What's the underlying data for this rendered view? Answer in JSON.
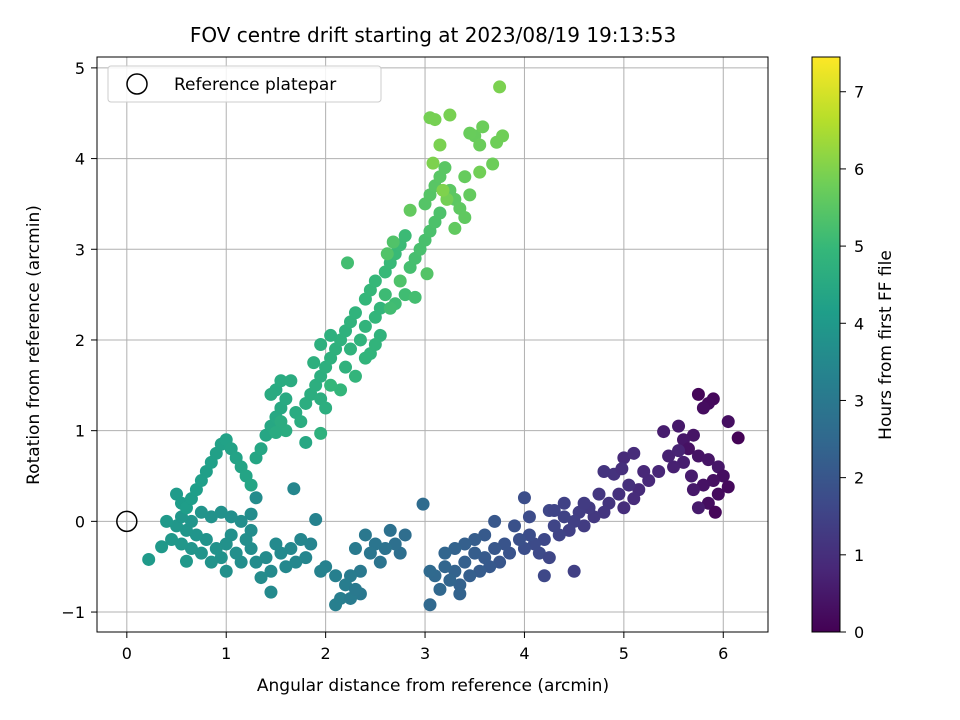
{
  "chart_data": {
    "type": "scatter",
    "title": "FOV centre drift starting at 2023/08/19 19:13:53",
    "xlabel": "Angular distance from reference (arcmin)",
    "ylabel": "Rotation from reference (arcmin)",
    "xlim": [
      -0.3,
      6.45
    ],
    "ylim": [
      -1.22,
      5.12
    ],
    "xticks": [
      "0",
      "1",
      "2",
      "3",
      "4",
      "5",
      "6"
    ],
    "yticks": [
      "−1",
      "0",
      "1",
      "2",
      "3",
      "4",
      "5"
    ],
    "grid": true,
    "legend": {
      "placement": "top-left",
      "entries": [
        "Reference platepar"
      ]
    },
    "reference_point": {
      "x": 0,
      "y": 0,
      "label": "Reference platepar"
    },
    "colorbar": {
      "label": "Hours from first FF file",
      "range": [
        0,
        7.45
      ],
      "ticks": [
        "0",
        "1",
        "2",
        "3",
        "4",
        "5",
        "6",
        "7"
      ],
      "colormap": "viridis"
    },
    "colormap_stops": [
      "#440154",
      "#482878",
      "#3e4989",
      "#31688e",
      "#26828e",
      "#1f9e89",
      "#35b779",
      "#6ece58",
      "#b5de2b",
      "#fde725"
    ],
    "points": [
      [
        5.75,
        1.4,
        0.1
      ],
      [
        5.9,
        1.35,
        0.15
      ],
      [
        5.85,
        1.3,
        0.2
      ],
      [
        5.8,
        1.25,
        0.25
      ],
      [
        6.15,
        0.92,
        0.05
      ],
      [
        6.05,
        1.1,
        0.3
      ],
      [
        5.7,
        0.95,
        0.4
      ],
      [
        5.6,
        0.9,
        0.45
      ],
      [
        5.55,
        1.05,
        0.5
      ],
      [
        5.4,
        0.99,
        0.6
      ],
      [
        5.65,
        0.8,
        0.35
      ],
      [
        5.75,
        0.72,
        0.38
      ],
      [
        5.85,
        0.68,
        0.42
      ],
      [
        5.95,
        0.6,
        0.46
      ],
      [
        6.0,
        0.5,
        0.28
      ],
      [
        5.9,
        0.45,
        0.33
      ],
      [
        5.8,
        0.4,
        0.36
      ],
      [
        5.7,
        0.35,
        0.48
      ],
      [
        5.95,
        0.3,
        0.22
      ],
      [
        6.05,
        0.38,
        0.18
      ],
      [
        5.85,
        0.2,
        0.26
      ],
      [
        5.75,
        0.15,
        0.55
      ],
      [
        5.92,
        0.1,
        0.12
      ],
      [
        5.68,
        0.5,
        0.58
      ],
      [
        5.6,
        0.65,
        0.62
      ],
      [
        5.5,
        0.6,
        0.66
      ],
      [
        5.45,
        0.72,
        0.7
      ],
      [
        5.55,
        0.78,
        0.74
      ],
      [
        5.35,
        0.55,
        0.8
      ],
      [
        5.25,
        0.45,
        0.86
      ],
      [
        5.15,
        0.35,
        0.9
      ],
      [
        5.1,
        0.25,
        0.94
      ],
      [
        5.0,
        0.15,
        0.98
      ],
      [
        5.05,
        0.4,
        1.02
      ],
      [
        4.95,
        0.3,
        1.05
      ],
      [
        4.9,
        0.52,
        1.08
      ],
      [
        4.85,
        0.2,
        1.12
      ],
      [
        4.8,
        0.1,
        1.16
      ],
      [
        4.75,
        0.3,
        1.2
      ],
      [
        5.2,
        0.55,
        0.84
      ],
      [
        5.0,
        0.7,
        0.88
      ],
      [
        5.1,
        0.75,
        0.92
      ],
      [
        4.98,
        0.58,
        1.0
      ],
      [
        4.7,
        0.05,
        1.24
      ],
      [
        4.65,
        0.15,
        1.28
      ],
      [
        4.6,
        -0.05,
        1.32
      ],
      [
        4.55,
        0.1,
        1.36
      ],
      [
        4.5,
        0.0,
        1.4
      ],
      [
        4.45,
        -0.1,
        1.44
      ],
      [
        4.4,
        0.05,
        1.48
      ],
      [
        4.35,
        -0.15,
        1.52
      ],
      [
        4.3,
        -0.05,
        1.56
      ],
      [
        4.25,
        0.12,
        1.6
      ],
      [
        4.2,
        -0.2,
        1.64
      ],
      [
        4.15,
        -0.35,
        1.68
      ],
      [
        4.1,
        -0.25,
        1.72
      ],
      [
        4.05,
        -0.15,
        1.76
      ],
      [
        4.0,
        -0.3,
        1.8
      ],
      [
        3.95,
        -0.2,
        1.84
      ],
      [
        3.9,
        -0.05,
        1.88
      ],
      [
        4.2,
        -0.6,
        1.62
      ],
      [
        4.5,
        -0.55,
        1.42
      ],
      [
        4.0,
        0.26,
        1.78
      ],
      [
        3.85,
        -0.35,
        1.92
      ],
      [
        3.8,
        -0.25,
        1.96
      ],
      [
        3.75,
        -0.45,
        2.0
      ],
      [
        3.7,
        -0.3,
        2.04
      ],
      [
        3.65,
        -0.5,
        2.08
      ],
      [
        3.6,
        -0.4,
        2.12
      ],
      [
        3.55,
        -0.55,
        2.16
      ],
      [
        3.5,
        -0.35,
        2.2
      ],
      [
        3.45,
        -0.6,
        2.24
      ],
      [
        3.4,
        -0.45,
        2.28
      ],
      [
        3.35,
        -0.7,
        2.32
      ],
      [
        3.3,
        -0.55,
        2.36
      ],
      [
        3.25,
        -0.65,
        2.4
      ],
      [
        3.2,
        -0.5,
        2.44
      ],
      [
        3.15,
        -0.75,
        2.48
      ],
      [
        3.1,
        -0.6,
        2.52
      ],
      [
        3.05,
        -0.55,
        2.56
      ],
      [
        3.05,
        -0.92,
        2.5
      ],
      [
        3.35,
        -0.8,
        2.34
      ],
      [
        3.7,
        0.0,
        2.04
      ],
      [
        3.6,
        -0.15,
        2.1
      ],
      [
        3.5,
        -0.2,
        2.18
      ],
      [
        3.4,
        -0.25,
        2.26
      ],
      [
        3.3,
        -0.3,
        2.34
      ],
      [
        3.2,
        -0.35,
        2.42
      ],
      [
        2.98,
        0.19,
        2.6
      ],
      [
        4.8,
        0.55,
        1.14
      ],
      [
        4.6,
        0.2,
        1.3
      ],
      [
        4.4,
        0.2,
        1.46
      ],
      [
        4.3,
        0.12,
        1.54
      ],
      [
        4.25,
        -0.4,
        1.58
      ],
      [
        4.05,
        0.05,
        1.74
      ],
      [
        2.8,
        -0.15,
        2.66
      ],
      [
        2.75,
        -0.35,
        2.7
      ],
      [
        2.7,
        -0.25,
        2.74
      ],
      [
        2.65,
        -0.1,
        2.78
      ],
      [
        2.6,
        -0.3,
        2.82
      ],
      [
        2.55,
        -0.45,
        2.86
      ],
      [
        2.5,
        -0.25,
        2.9
      ],
      [
        2.45,
        -0.35,
        2.94
      ],
      [
        2.4,
        -0.15,
        2.98
      ],
      [
        2.35,
        -0.55,
        3.02
      ],
      [
        2.3,
        -0.3,
        3.06
      ],
      [
        2.25,
        -0.6,
        3.1
      ],
      [
        2.2,
        -0.7,
        3.14
      ],
      [
        2.15,
        -0.85,
        3.18
      ],
      [
        2.1,
        -0.92,
        3.22
      ],
      [
        2.35,
        -0.8,
        3.0
      ],
      [
        2.25,
        -0.85,
        3.08
      ],
      [
        2.3,
        -0.75,
        3.04
      ],
      [
        2.1,
        -0.6,
        3.2
      ],
      [
        2.0,
        -0.5,
        3.28
      ],
      [
        1.95,
        -0.55,
        3.3
      ],
      [
        1.9,
        0.02,
        3.32
      ],
      [
        1.85,
        -0.25,
        3.36
      ],
      [
        1.8,
        -0.4,
        3.4
      ],
      [
        1.75,
        -0.2,
        3.44
      ],
      [
        1.7,
        -0.45,
        3.46
      ],
      [
        1.65,
        -0.3,
        3.48
      ],
      [
        1.6,
        -0.5,
        3.5
      ],
      [
        1.55,
        -0.35,
        3.52
      ],
      [
        1.5,
        -0.25,
        3.54
      ],
      [
        1.45,
        -0.55,
        3.56
      ],
      [
        1.4,
        -0.4,
        3.58
      ],
      [
        1.35,
        -0.62,
        3.6
      ],
      [
        1.3,
        -0.45,
        3.62
      ],
      [
        1.25,
        -0.3,
        3.64
      ],
      [
        1.45,
        -0.78,
        3.55
      ],
      [
        1.68,
        0.36,
        3.42
      ],
      [
        1.2,
        -0.2,
        3.66
      ],
      [
        1.15,
        -0.45,
        3.68
      ],
      [
        1.1,
        -0.35,
        3.7
      ],
      [
        1.05,
        -0.15,
        3.72
      ],
      [
        1.0,
        -0.25,
        3.74
      ],
      [
        0.95,
        -0.4,
        3.76
      ],
      [
        0.9,
        -0.3,
        3.78
      ],
      [
        0.85,
        -0.45,
        3.8
      ],
      [
        0.8,
        -0.2,
        3.82
      ],
      [
        0.75,
        -0.35,
        3.84
      ],
      [
        0.7,
        -0.15,
        3.86
      ],
      [
        0.65,
        -0.3,
        3.88
      ],
      [
        0.6,
        -0.1,
        3.9
      ],
      [
        0.55,
        -0.25,
        3.92
      ],
      [
        0.5,
        -0.05,
        3.94
      ],
      [
        0.45,
        -0.2,
        3.96
      ],
      [
        0.4,
        0.0,
        3.98
      ],
      [
        0.35,
        -0.28,
        4.0
      ],
      [
        0.22,
        -0.42,
        4.02
      ],
      [
        0.6,
        -0.44,
        3.95
      ],
      [
        1.0,
        -0.55,
        3.73
      ],
      [
        1.25,
        -0.1,
        3.63
      ],
      [
        1.15,
        0.0,
        3.67
      ],
      [
        1.05,
        0.05,
        3.71
      ],
      [
        0.95,
        0.1,
        3.75
      ],
      [
        0.85,
        0.05,
        3.79
      ],
      [
        0.75,
        0.1,
        3.83
      ],
      [
        0.65,
        0.0,
        3.87
      ],
      [
        0.55,
        0.05,
        3.91
      ],
      [
        1.3,
        0.26,
        3.6
      ],
      [
        1.25,
        0.08,
        3.65
      ],
      [
        0.5,
        0.3,
        4.05
      ],
      [
        0.55,
        0.2,
        4.08
      ],
      [
        0.6,
        0.15,
        4.1
      ],
      [
        0.65,
        0.25,
        4.12
      ],
      [
        0.7,
        0.35,
        4.14
      ],
      [
        0.75,
        0.45,
        4.16
      ],
      [
        0.8,
        0.55,
        4.18
      ],
      [
        0.85,
        0.65,
        4.2
      ],
      [
        0.9,
        0.75,
        4.22
      ],
      [
        0.95,
        0.85,
        4.24
      ],
      [
        1.0,
        0.9,
        4.26
      ],
      [
        1.05,
        0.8,
        4.28
      ],
      [
        1.1,
        0.7,
        4.3
      ],
      [
        1.15,
        0.6,
        4.32
      ],
      [
        1.2,
        0.5,
        4.34
      ],
      [
        1.25,
        0.4,
        4.36
      ],
      [
        1.3,
        0.7,
        4.38
      ],
      [
        1.35,
        0.8,
        4.4
      ],
      [
        1.4,
        0.95,
        4.42
      ],
      [
        1.45,
        1.05,
        4.44
      ],
      [
        1.5,
        1.15,
        4.46
      ],
      [
        1.55,
        1.25,
        4.48
      ],
      [
        1.6,
        1.35,
        4.5
      ],
      [
        1.5,
        1.45,
        4.52
      ],
      [
        1.45,
        1.4,
        4.54
      ],
      [
        1.55,
        1.55,
        4.56
      ],
      [
        1.65,
        1.55,
        4.58
      ],
      [
        1.8,
        0.87,
        4.44
      ],
      [
        1.7,
        1.2,
        4.57
      ],
      [
        1.75,
        1.1,
        4.6
      ],
      [
        1.8,
        1.3,
        4.62
      ],
      [
        1.85,
        1.4,
        4.64
      ],
      [
        1.9,
        1.5,
        4.66
      ],
      [
        1.95,
        1.6,
        4.68
      ],
      [
        2.0,
        1.7,
        4.7
      ],
      [
        2.05,
        1.8,
        4.72
      ],
      [
        2.1,
        1.9,
        4.74
      ],
      [
        2.15,
        2.0,
        4.76
      ],
      [
        2.2,
        2.1,
        4.78
      ],
      [
        2.25,
        2.2,
        4.8
      ],
      [
        2.3,
        2.3,
        4.82
      ],
      [
        1.95,
        1.35,
        4.65
      ],
      [
        2.0,
        1.25,
        4.67
      ],
      [
        1.88,
        1.75,
        4.69
      ],
      [
        1.95,
        1.95,
        4.71
      ],
      [
        2.05,
        2.05,
        4.73
      ],
      [
        2.2,
        1.7,
        4.77
      ],
      [
        2.25,
        1.9,
        4.79
      ],
      [
        2.35,
        2.0,
        4.83
      ],
      [
        2.4,
        2.15,
        4.85
      ],
      [
        2.45,
        1.85,
        4.87
      ],
      [
        2.5,
        2.25,
        4.89
      ],
      [
        2.55,
        2.35,
        4.91
      ],
      [
        2.4,
        2.45,
        4.93
      ],
      [
        2.45,
        2.55,
        4.95
      ],
      [
        2.5,
        2.65,
        4.97
      ],
      [
        2.6,
        2.75,
        4.99
      ],
      [
        2.65,
        2.85,
        5.01
      ],
      [
        2.7,
        2.95,
        5.03
      ],
      [
        2.75,
        3.05,
        5.05
      ],
      [
        2.8,
        3.15,
        5.07
      ],
      [
        2.6,
        2.5,
        5.09
      ],
      [
        2.7,
        2.4,
        5.11
      ],
      [
        2.8,
        2.5,
        5.13
      ],
      [
        2.65,
        2.35,
        5.15
      ],
      [
        2.22,
        2.85,
        5.17
      ],
      [
        2.9,
        2.47,
        5.19
      ],
      [
        2.85,
        2.8,
        5.21
      ],
      [
        2.9,
        2.9,
        5.23
      ],
      [
        2.95,
        3.0,
        5.25
      ],
      [
        3.0,
        3.1,
        5.27
      ],
      [
        3.05,
        3.2,
        5.29
      ],
      [
        3.1,
        3.3,
        5.31
      ],
      [
        3.15,
        3.4,
        5.33
      ],
      [
        2.75,
        2.65,
        5.35
      ],
      [
        2.68,
        3.08,
        5.37
      ],
      [
        2.62,
        2.95,
        5.39
      ],
      [
        3.02,
        2.73,
        5.41
      ],
      [
        3.0,
        3.5,
        5.43
      ],
      [
        3.05,
        3.6,
        5.45
      ],
      [
        3.1,
        3.7,
        5.47
      ],
      [
        3.15,
        3.8,
        5.49
      ],
      [
        3.2,
        3.9,
        5.51
      ],
      [
        3.25,
        3.65,
        5.53
      ],
      [
        3.3,
        3.55,
        5.55
      ],
      [
        3.35,
        3.45,
        5.57
      ],
      [
        3.4,
        3.35,
        5.59
      ],
      [
        3.3,
        3.23,
        5.61
      ],
      [
        2.85,
        3.43,
        5.63
      ],
      [
        3.45,
        3.6,
        5.65
      ],
      [
        3.4,
        3.8,
        5.67
      ],
      [
        3.5,
        4.25,
        5.69
      ],
      [
        3.45,
        4.28,
        5.71
      ],
      [
        3.55,
        4.15,
        5.73
      ],
      [
        3.58,
        4.35,
        5.75
      ],
      [
        3.68,
        3.94,
        5.77
      ],
      [
        3.72,
        4.18,
        5.79
      ],
      [
        3.78,
        4.25,
        5.81
      ],
      [
        3.55,
        3.85,
        5.83
      ],
      [
        3.22,
        3.55,
        5.85
      ],
      [
        3.05,
        4.45,
        5.87
      ],
      [
        3.1,
        4.43,
        5.89
      ],
      [
        3.25,
        4.48,
        5.91
      ],
      [
        3.75,
        4.79,
        5.95
      ],
      [
        3.15,
        4.15,
        5.93
      ],
      [
        3.08,
        3.95,
        5.97
      ],
      [
        3.18,
        3.65,
        5.99
      ],
      [
        2.55,
        2.05,
        4.81
      ],
      [
        2.5,
        1.95,
        4.84
      ],
      [
        2.4,
        1.8,
        4.86
      ],
      [
        2.3,
        1.6,
        4.88
      ],
      [
        2.15,
        1.45,
        4.9
      ],
      [
        2.05,
        1.5,
        4.92
      ],
      [
        1.95,
        0.97,
        4.75
      ],
      [
        1.6,
        1.0,
        4.6
      ],
      [
        1.55,
        1.1,
        4.58
      ],
      [
        1.5,
        0.98,
        4.56
      ]
    ]
  }
}
